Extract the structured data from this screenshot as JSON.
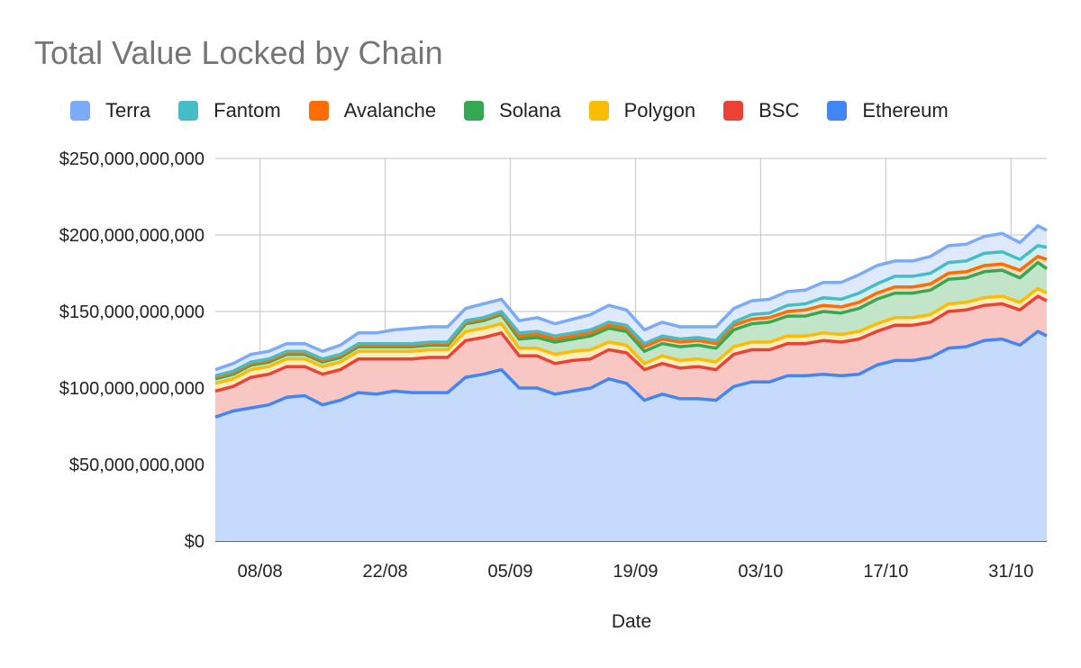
{
  "chart_data": {
    "type": "area",
    "stacked": true,
    "title": "Total Value Locked by Chain",
    "xlabel": "Date",
    "ylabel": "",
    "ylim": [
      0,
      250000000000
    ],
    "y_ticks": [
      {
        "value": 0,
        "label": "$0"
      },
      {
        "value": 50000000000,
        "label": "$50,000,000,000"
      },
      {
        "value": 100000000000,
        "label": "$100,000,000,000"
      },
      {
        "value": 150000000000,
        "label": "$150,000,000,000"
      },
      {
        "value": 200000000000,
        "label": "$200,000,000,000"
      },
      {
        "value": 250000000000,
        "label": "$250,000,000,000"
      }
    ],
    "x_range": [
      "2021-08-03",
      "2021-11-04"
    ],
    "x_ticks": [
      {
        "date": "2021-08-08",
        "label": "08/08"
      },
      {
        "date": "2021-08-22",
        "label": "22/08"
      },
      {
        "date": "2021-09-05",
        "label": "05/09"
      },
      {
        "date": "2021-09-19",
        "label": "19/09"
      },
      {
        "date": "2021-10-03",
        "label": "03/10"
      },
      {
        "date": "2021-10-17",
        "label": "17/10"
      },
      {
        "date": "2021-10-31",
        "label": "31/10"
      }
    ],
    "grid": true,
    "legend_position": "top",
    "legend_order": [
      "Terra",
      "Fantom",
      "Avalanche",
      "Solana",
      "Polygon",
      "BSC",
      "Ethereum"
    ],
    "dates": [
      "2021-08-03",
      "2021-08-05",
      "2021-08-07",
      "2021-08-09",
      "2021-08-11",
      "2021-08-13",
      "2021-08-15",
      "2021-08-17",
      "2021-08-19",
      "2021-08-21",
      "2021-08-23",
      "2021-08-25",
      "2021-08-27",
      "2021-08-29",
      "2021-08-31",
      "2021-09-02",
      "2021-09-04",
      "2021-09-06",
      "2021-09-08",
      "2021-09-10",
      "2021-09-12",
      "2021-09-14",
      "2021-09-16",
      "2021-09-18",
      "2021-09-20",
      "2021-09-22",
      "2021-09-24",
      "2021-09-26",
      "2021-09-28",
      "2021-09-30",
      "2021-10-02",
      "2021-10-04",
      "2021-10-06",
      "2021-10-08",
      "2021-10-10",
      "2021-10-12",
      "2021-10-14",
      "2021-10-16",
      "2021-10-18",
      "2021-10-20",
      "2021-10-22",
      "2021-10-24",
      "2021-10-26",
      "2021-10-28",
      "2021-10-30",
      "2021-11-01",
      "2021-11-03",
      "2021-11-04"
    ],
    "series": [
      {
        "name": "Ethereum",
        "color": "#4285f4",
        "fill": "#c6dafc",
        "values": [
          81,
          85,
          87,
          89,
          94,
          95,
          89,
          92,
          97,
          96,
          98,
          97,
          97,
          97,
          107,
          109,
          112,
          100,
          100,
          96,
          98,
          100,
          106,
          103,
          92,
          96,
          93,
          93,
          92,
          101,
          104,
          104,
          108,
          108,
          109,
          108,
          109,
          115,
          118,
          118,
          120,
          126,
          127,
          131,
          132,
          128,
          137,
          134
        ]
      },
      {
        "name": "BSC",
        "color": "#ea4335",
        "fill": "#f8c7c3",
        "values": [
          98,
          101,
          107,
          109,
          114,
          114,
          109,
          112,
          119,
          119,
          119,
          119,
          120,
          120,
          131,
          133,
          136,
          121,
          121,
          116,
          118,
          119,
          125,
          123,
          112,
          116,
          113,
          114,
          112,
          122,
          125,
          125,
          129,
          129,
          131,
          130,
          132,
          137,
          141,
          141,
          143,
          150,
          151,
          154,
          155,
          151,
          160,
          157
        ]
      },
      {
        "name": "Polygon",
        "color": "#fbbc04",
        "fill": "#feedbe",
        "values": [
          103,
          106,
          112,
          114,
          119,
          119,
          114,
          117,
          124,
          124,
          124,
          124,
          125,
          125,
          137,
          139,
          142,
          126,
          126,
          122,
          124,
          125,
          130,
          128,
          116,
          121,
          118,
          119,
          117,
          127,
          130,
          130,
          134,
          134,
          136,
          135,
          137,
          142,
          146,
          146,
          148,
          155,
          156,
          159,
          160,
          156,
          165,
          162
        ]
      },
      {
        "name": "Solana",
        "color": "#34a853",
        "fill": "#c2e5ca",
        "values": [
          106,
          109,
          115,
          117,
          122,
          122,
          117,
          120,
          127,
          127,
          127,
          127,
          128,
          128,
          142,
          144,
          148,
          132,
          133,
          130,
          132,
          134,
          139,
          137,
          124,
          129,
          127,
          128,
          126,
          138,
          142,
          143,
          147,
          147,
          150,
          149,
          152,
          158,
          162,
          162,
          164,
          171,
          172,
          176,
          177,
          172,
          182,
          178
        ]
      },
      {
        "name": "Avalanche",
        "color": "#ff6d01",
        "fill": "#ffdbbf",
        "values": [
          107,
          110,
          116,
          118,
          123,
          123,
          118,
          121,
          128,
          128,
          128,
          128,
          129,
          129,
          143,
          145,
          149,
          134,
          135,
          132,
          134,
          136,
          141,
          139,
          127,
          132,
          130,
          131,
          129,
          141,
          145,
          146,
          150,
          151,
          154,
          153,
          156,
          162,
          166,
          166,
          168,
          175,
          176,
          180,
          181,
          177,
          186,
          184
        ]
      },
      {
        "name": "Fantom",
        "color": "#46bdc6",
        "fill": "#d1eff1",
        "values": [
          108,
          111,
          117,
          119,
          124,
          124,
          119,
          122,
          129,
          129,
          129,
          129,
          130,
          130,
          144,
          146,
          150,
          136,
          137,
          134,
          136,
          138,
          143,
          141,
          129,
          134,
          132,
          133,
          131,
          143,
          148,
          149,
          154,
          155,
          159,
          158,
          162,
          168,
          173,
          173,
          175,
          182,
          183,
          188,
          189,
          184,
          193,
          192
        ]
      },
      {
        "name": "Terra",
        "color": "#7baaf7",
        "fill": "#dfe9fd",
        "values": [
          112,
          116,
          122,
          124,
          129,
          129,
          124,
          128,
          136,
          136,
          138,
          139,
          140,
          140,
          152,
          155,
          158,
          144,
          146,
          142,
          145,
          148,
          154,
          151,
          138,
          143,
          140,
          140,
          140,
          152,
          157,
          158,
          163,
          164,
          169,
          169,
          174,
          180,
          183,
          183,
          186,
          193,
          194,
          199,
          201,
          195,
          206,
          203
        ]
      }
    ],
    "value_unit_note": "values in billions of USD, stacked cumulative top edge per series"
  }
}
